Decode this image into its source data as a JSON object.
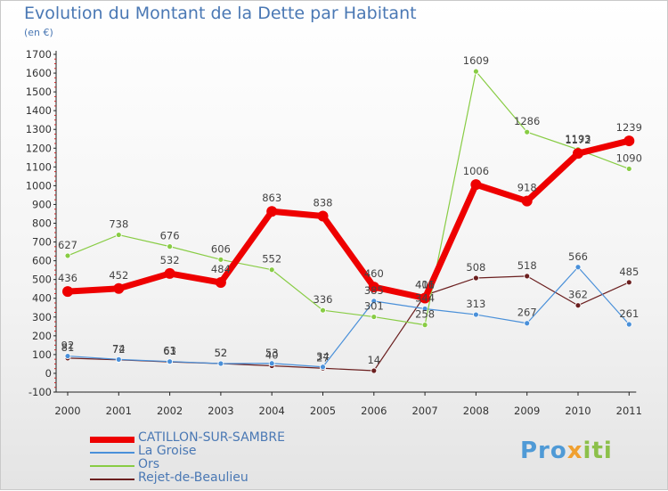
{
  "title": "Evolution du Montant de la Dette par Habitant",
  "subtitle": "(en €)",
  "logo": {
    "p": "Pro",
    "x": "x",
    "i": "iti"
  },
  "chart_data": {
    "type": "line",
    "title": "Evolution du Montant de la Dette par Habitant",
    "subtitle": "(en €)",
    "x": [
      "2000",
      "2001",
      "2002",
      "2003",
      "2004",
      "2005",
      "2006",
      "2007",
      "2008",
      "2009",
      "2010",
      "2011"
    ],
    "ylim": [
      -100,
      1700
    ],
    "yticks": [
      -100,
      0,
      100,
      200,
      300,
      400,
      500,
      600,
      700,
      800,
      900,
      1000,
      1100,
      1200,
      1300,
      1400,
      1500,
      1600,
      1700
    ],
    "grid": false,
    "legend_position": "bottom-left",
    "series": [
      {
        "name": "CATILLON-SUR-SAMBRE",
        "color": "#ee0000",
        "values": [
          436,
          452,
          532,
          484,
          863,
          838,
          460,
          401,
          1006,
          918,
          1172,
          1239
        ]
      },
      {
        "name": "La Groise",
        "color": "#4a90d9",
        "values": [
          92,
          74,
          63,
          52,
          53,
          34,
          385,
          344,
          313,
          267,
          566,
          261
        ]
      },
      {
        "name": "Ors",
        "color": "#88cc44",
        "values": [
          627,
          738,
          676,
          606,
          552,
          336,
          301,
          258,
          1609,
          1286,
          1193,
          1090
        ]
      },
      {
        "name": "Rejet-de-Beaulieu",
        "color": "#6b1f1f",
        "values": [
          81,
          72,
          61,
          52,
          40,
          27,
          14,
          416,
          508,
          518,
          362,
          485
        ]
      }
    ]
  }
}
